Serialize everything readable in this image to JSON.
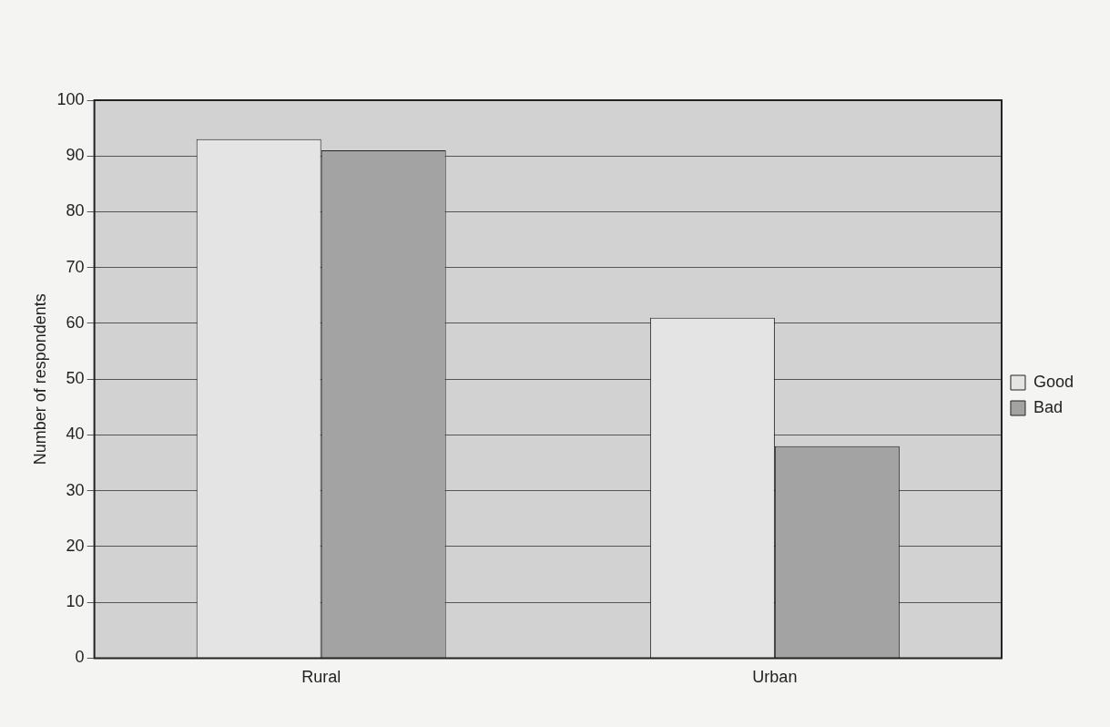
{
  "chart_data": {
    "type": "bar",
    "ylabel": "Number of respondents",
    "categories": [
      "Rural",
      "Urban"
    ],
    "series": [
      {
        "name": "Good",
        "color": "#e4e4e4",
        "values": [
          93,
          61
        ]
      },
      {
        "name": "Bad",
        "color": "#a3a3a3",
        "values": [
          91,
          38
        ]
      }
    ],
    "ylim": [
      0,
      100
    ],
    "yticks": [
      0,
      10,
      20,
      30,
      40,
      50,
      60,
      70,
      80,
      90,
      100
    ],
    "grid": "y",
    "legend": "right"
  }
}
